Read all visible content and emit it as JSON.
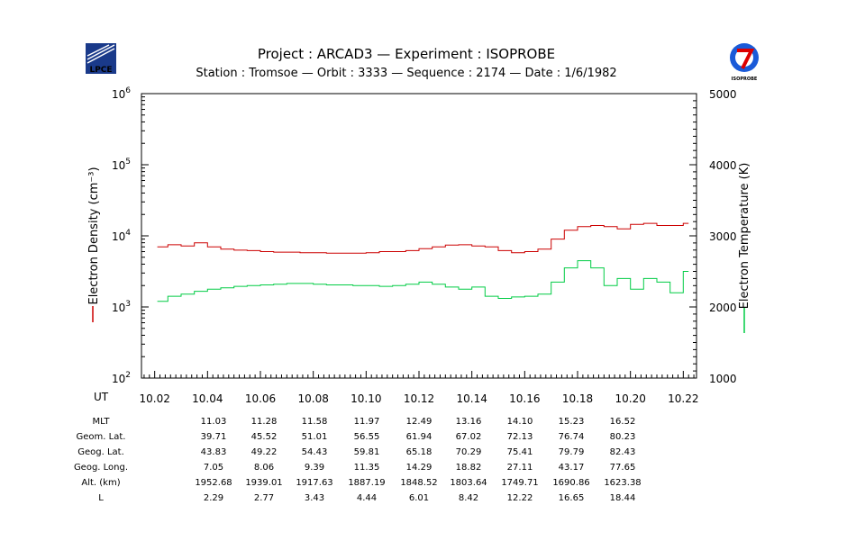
{
  "header": {
    "title": "Project : ARCAD3  —  Experiment : ISOPROBE",
    "subtitle": "Station : Tromsoe  —  Orbit :  3333  —  Sequence : 2174  —  Date : 1/6/1982",
    "logo_left_text": "LPCE",
    "logo_right_text": "ISOPROBE"
  },
  "chart_data": {
    "type": "line",
    "x_range": [
      10.015,
      10.225
    ],
    "x_ticks": [
      "10.02",
      "10.04",
      "10.06",
      "10.08",
      "10.10",
      "10.12",
      "10.14",
      "10.16",
      "10.18",
      "10.20",
      "10.22"
    ],
    "x_tick_values": [
      10.02,
      10.04,
      10.06,
      10.08,
      10.1,
      10.12,
      10.14,
      10.16,
      10.18,
      10.2,
      10.22
    ],
    "x_axis_label": "UT",
    "left_axis": {
      "label": "Electron Density (cm⁻³)",
      "scale": "log",
      "range": [
        100,
        1000000
      ],
      "tick_values": [
        100,
        1000,
        10000,
        100000,
        1000000
      ],
      "tick_base": "10",
      "tick_exponents": [
        "2",
        "3",
        "4",
        "5",
        "6"
      ]
    },
    "right_axis": {
      "label": "Electron Temperature (K)",
      "scale": "linear",
      "range": [
        1000,
        5000
      ],
      "tick_values": [
        1000,
        2000,
        3000,
        4000,
        5000
      ],
      "tick_labels": [
        "1000",
        "2000",
        "3000",
        "4000",
        "5000"
      ]
    },
    "series": [
      {
        "name": "Electron Density",
        "axis": "left",
        "color": "#cc0000",
        "x": [
          10.021,
          10.025,
          10.03,
          10.035,
          10.04,
          10.045,
          10.05,
          10.055,
          10.06,
          10.065,
          10.07,
          10.075,
          10.08,
          10.085,
          10.09,
          10.095,
          10.1,
          10.105,
          10.11,
          10.115,
          10.12,
          10.125,
          10.13,
          10.135,
          10.14,
          10.145,
          10.15,
          10.155,
          10.16,
          10.165,
          10.17,
          10.175,
          10.18,
          10.185,
          10.19,
          10.195,
          10.2,
          10.205,
          10.21,
          10.215,
          10.22
        ],
        "y": [
          7000,
          7500,
          7200,
          8000,
          7000,
          6500,
          6300,
          6200,
          6000,
          5900,
          5900,
          5800,
          5800,
          5700,
          5700,
          5700,
          5800,
          6000,
          6000,
          6200,
          6600,
          7000,
          7400,
          7500,
          7200,
          7000,
          6200,
          5800,
          6000,
          6500,
          9000,
          12000,
          13500,
          14000,
          13500,
          12500,
          14500,
          15000,
          14000,
          14000,
          15000
        ]
      },
      {
        "name": "Electron Temperature",
        "axis": "right",
        "color": "#00cc44",
        "x": [
          10.021,
          10.025,
          10.03,
          10.035,
          10.04,
          10.045,
          10.05,
          10.055,
          10.06,
          10.065,
          10.07,
          10.075,
          10.08,
          10.085,
          10.09,
          10.095,
          10.1,
          10.105,
          10.11,
          10.115,
          10.12,
          10.125,
          10.13,
          10.135,
          10.14,
          10.145,
          10.15,
          10.155,
          10.16,
          10.165,
          10.17,
          10.175,
          10.18,
          10.185,
          10.19,
          10.195,
          10.2,
          10.205,
          10.21,
          10.215,
          10.22
        ],
        "y": [
          2080,
          2150,
          2180,
          2220,
          2250,
          2270,
          2290,
          2300,
          2310,
          2320,
          2330,
          2330,
          2320,
          2310,
          2310,
          2300,
          2300,
          2290,
          2300,
          2320,
          2350,
          2320,
          2280,
          2250,
          2280,
          2150,
          2120,
          2140,
          2150,
          2180,
          2350,
          2550,
          2650,
          2550,
          2300,
          2400,
          2250,
          2400,
          2350,
          2200,
          2500
        ]
      }
    ]
  },
  "ephemeris": {
    "rows": [
      {
        "label": "MLT",
        "values": [
          "11.03",
          "11.28",
          "11.58",
          "11.97",
          "12.49",
          "13.16",
          "14.10",
          "15.23",
          "16.52"
        ]
      },
      {
        "label": "Geom. Lat.",
        "values": [
          "39.71",
          "45.52",
          "51.01",
          "56.55",
          "61.94",
          "67.02",
          "72.13",
          "76.74",
          "80.23"
        ]
      },
      {
        "label": "Geog. Lat.",
        "values": [
          "43.83",
          "49.22",
          "54.43",
          "59.81",
          "65.18",
          "70.29",
          "75.41",
          "79.79",
          "82.43"
        ]
      },
      {
        "label": "Geog. Long.",
        "values": [
          "7.05",
          "8.06",
          "9.39",
          "11.35",
          "14.29",
          "18.82",
          "27.11",
          "43.17",
          "77.65"
        ]
      },
      {
        "label": "Alt. (km)",
        "values": [
          "1952.68",
          "1939.01",
          "1917.63",
          "1887.19",
          "1848.52",
          "1803.64",
          "1749.71",
          "1690.86",
          "1623.38"
        ]
      },
      {
        "label": "L",
        "values": [
          "2.29",
          "2.77",
          "3.43",
          "4.44",
          "6.01",
          "8.42",
          "12.22",
          "16.65",
          "18.44"
        ]
      }
    ]
  }
}
